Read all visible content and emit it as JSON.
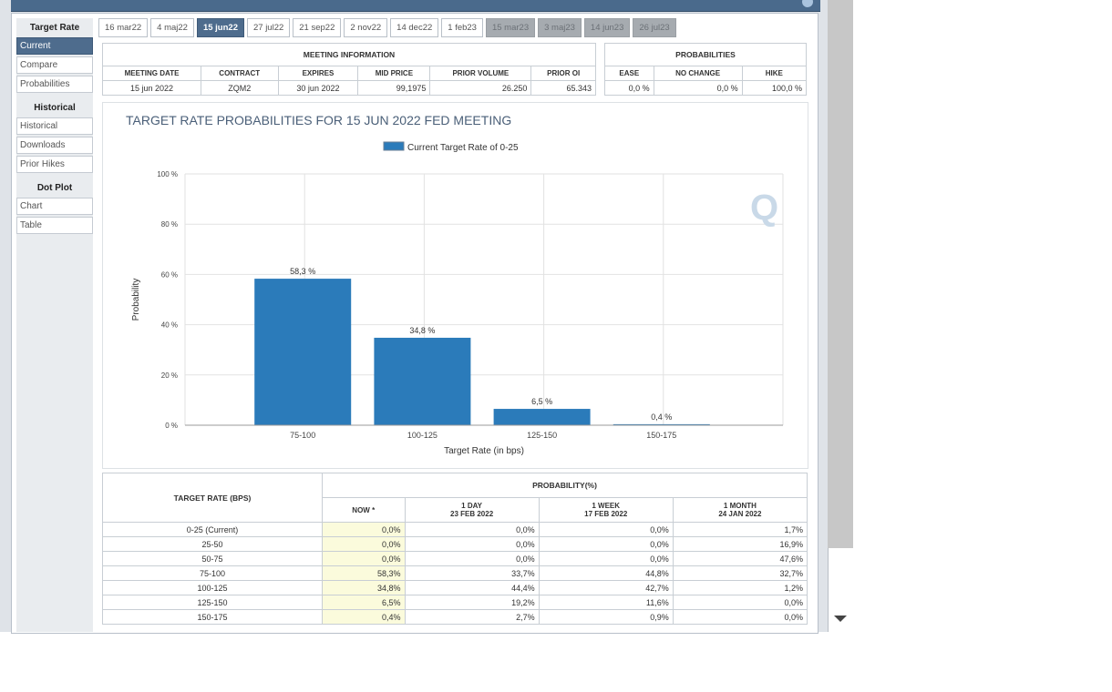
{
  "sidebar": {
    "sections": [
      {
        "title": "Target Rate",
        "items": [
          {
            "label": "Current",
            "active": true
          },
          {
            "label": "Compare",
            "active": false
          },
          {
            "label": "Probabilities",
            "active": false
          }
        ]
      },
      {
        "title": "Historical",
        "items": [
          {
            "label": "Historical",
            "active": false
          },
          {
            "label": "Downloads",
            "active": false
          },
          {
            "label": "Prior Hikes",
            "active": false
          }
        ]
      },
      {
        "title": "Dot Plot",
        "items": [
          {
            "label": "Chart",
            "active": false
          },
          {
            "label": "Table",
            "active": false
          }
        ]
      }
    ]
  },
  "tabs": [
    {
      "label": "16 mar22",
      "state": "normal"
    },
    {
      "label": "4 maj22",
      "state": "normal"
    },
    {
      "label": "15 jun22",
      "state": "active"
    },
    {
      "label": "27 jul22",
      "state": "normal"
    },
    {
      "label": "21 sep22",
      "state": "normal"
    },
    {
      "label": "2 nov22",
      "state": "normal"
    },
    {
      "label": "14 dec22",
      "state": "normal"
    },
    {
      "label": "1 feb23",
      "state": "normal"
    },
    {
      "label": "15 mar23",
      "state": "disabled"
    },
    {
      "label": "3 maj23",
      "state": "disabled"
    },
    {
      "label": "14 jun23",
      "state": "disabled"
    },
    {
      "label": "26 jul23",
      "state": "disabled"
    }
  ],
  "meeting_info": {
    "title": "MEETING INFORMATION",
    "headers": [
      "MEETING DATE",
      "CONTRACT",
      "EXPIRES",
      "MID PRICE",
      "PRIOR VOLUME",
      "PRIOR OI"
    ],
    "values": [
      "15 jun 2022",
      "ZQM2",
      "30 jun 2022",
      "99,1975",
      "26.250",
      "65.343"
    ]
  },
  "probabilities": {
    "title": "PROBABILITIES",
    "headers": [
      "EASE",
      "NO CHANGE",
      "HIKE"
    ],
    "values": [
      "0,0 %",
      "0,0 %",
      "100,0 %"
    ]
  },
  "chart_data": {
    "type": "bar",
    "title": "TARGET RATE PROBABILITIES FOR 15 JUN 2022 FED MEETING",
    "legend": "Current Target Rate of 0-25",
    "categories": [
      "75-100",
      "100-125",
      "125-150",
      "150-175"
    ],
    "values": [
      58.3,
      34.8,
      6.5,
      0.4
    ],
    "data_labels": [
      "58,3 %",
      "34,8 %",
      "6,5 %",
      "0,4 %"
    ],
    "ylabel": "Probability",
    "xlabel": "Target Rate (in bps)",
    "ylim": [
      0,
      100
    ],
    "yticks": [
      "0 %",
      "20 %",
      "40 %",
      "60 %",
      "80 %",
      "100 %"
    ],
    "grid": true,
    "bar_color": "#2b7bba",
    "watermark": "Q"
  },
  "prob_table": {
    "row_header": "TARGET RATE (BPS)",
    "group_header": "PROBABILITY(%)",
    "columns": [
      {
        "line1": "NOW *",
        "line2": ""
      },
      {
        "line1": "1 DAY",
        "line2": "23 FEB 2022"
      },
      {
        "line1": "1 WEEK",
        "line2": "17 FEB 2022"
      },
      {
        "line1": "1 MONTH",
        "line2": "24 JAN 2022"
      }
    ],
    "rows": [
      {
        "rate": "0-25 (Current)",
        "now": "0,0%",
        "day": "0,0%",
        "week": "0,0%",
        "month": "1,7%"
      },
      {
        "rate": "25-50",
        "now": "0,0%",
        "day": "0,0%",
        "week": "0,0%",
        "month": "16,9%"
      },
      {
        "rate": "50-75",
        "now": "0,0%",
        "day": "0,0%",
        "week": "0,0%",
        "month": "47,6%"
      },
      {
        "rate": "75-100",
        "now": "58,3%",
        "day": "33,7%",
        "week": "44,8%",
        "month": "32,7%"
      },
      {
        "rate": "100-125",
        "now": "34,8%",
        "day": "44,4%",
        "week": "42,7%",
        "month": "1,2%"
      },
      {
        "rate": "125-150",
        "now": "6,5%",
        "day": "19,2%",
        "week": "11,6%",
        "month": "0,0%"
      },
      {
        "rate": "150-175",
        "now": "0,4%",
        "day": "2,7%",
        "week": "0,9%",
        "month": "0,0%"
      }
    ]
  }
}
